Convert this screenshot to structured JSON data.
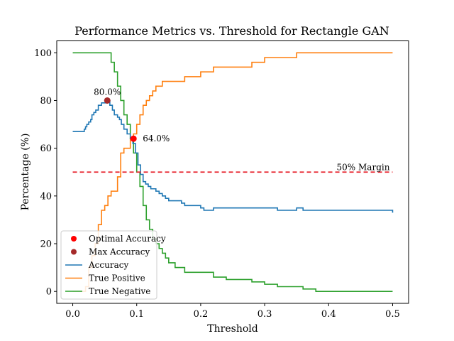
{
  "chart_data": {
    "type": "line",
    "title": "Performance Metrics vs. Threshold for Rectangle GAN",
    "xlabel": "Threshold",
    "ylabel": "Percentage (%)",
    "xlim": [
      -0.025,
      0.525
    ],
    "ylim": [
      -5,
      105
    ],
    "xticks": [
      0.0,
      0.1,
      0.2,
      0.3,
      0.4,
      0.5
    ],
    "xtick_labels": [
      "0.0",
      "0.1",
      "0.2",
      "0.3",
      "0.4",
      "0.5"
    ],
    "yticks": [
      0,
      20,
      40,
      60,
      80,
      100
    ],
    "ytick_labels": [
      "0",
      "20",
      "40",
      "60",
      "80",
      "100"
    ],
    "grid": false,
    "legend_position": "lower-left",
    "colors": {
      "accuracy": "#1f77b4",
      "true_positive": "#ff7f0e",
      "true_negative": "#2ca02c",
      "margin": "#e8202a",
      "optimal_point": "#ff0000",
      "max_point": "#a52a2a"
    },
    "series": [
      {
        "name": "Accuracy",
        "key": "accuracy",
        "x": [
          0.0,
          0.016,
          0.018,
          0.02,
          0.022,
          0.025,
          0.028,
          0.03,
          0.033,
          0.036,
          0.04,
          0.045,
          0.05,
          0.053,
          0.058,
          0.062,
          0.065,
          0.07,
          0.073,
          0.076,
          0.08,
          0.085,
          0.09,
          0.094,
          0.098,
          0.102,
          0.106,
          0.11,
          0.114,
          0.118,
          0.122,
          0.126,
          0.13,
          0.135,
          0.14,
          0.145,
          0.15,
          0.16,
          0.17,
          0.175,
          0.2,
          0.205,
          0.21,
          0.22,
          0.23,
          0.24,
          0.25,
          0.26,
          0.28,
          0.3,
          0.32,
          0.34,
          0.35,
          0.36,
          0.37,
          0.5
        ],
        "values": [
          67,
          67,
          68,
          69,
          70,
          71,
          72,
          74,
          75,
          76,
          78,
          79,
          79,
          80,
          78,
          76,
          74,
          73,
          72,
          70,
          68,
          66,
          64,
          62,
          58,
          53,
          49,
          46,
          45,
          44,
          43,
          43,
          42,
          41,
          40,
          39,
          38,
          38,
          37,
          36,
          35,
          34,
          34,
          35,
          35,
          35,
          35,
          35,
          35,
          35,
          34,
          34,
          35,
          34,
          34,
          33
        ]
      },
      {
        "name": "True Positive",
        "key": "true_positive",
        "x": [
          0.0,
          0.015,
          0.02,
          0.025,
          0.03,
          0.035,
          0.04,
          0.045,
          0.05,
          0.055,
          0.06,
          0.07,
          0.075,
          0.08,
          0.09,
          0.095,
          0.1,
          0.105,
          0.11,
          0.115,
          0.12,
          0.125,
          0.13,
          0.135,
          0.14,
          0.145,
          0.15,
          0.16,
          0.175,
          0.2,
          0.22,
          0.23,
          0.25,
          0.28,
          0.3,
          0.32,
          0.35,
          0.5
        ],
        "values": [
          0,
          0,
          2,
          10,
          15,
          20,
          28,
          34,
          36,
          40,
          42,
          48,
          58,
          60,
          64,
          66,
          70,
          74,
          78,
          80,
          82,
          84,
          86,
          86,
          88,
          88,
          88,
          88,
          90,
          92,
          94,
          94,
          94,
          96,
          98,
          98,
          100,
          100
        ]
      },
      {
        "name": "True Negative",
        "key": "true_negative",
        "x": [
          0.0,
          0.055,
          0.06,
          0.065,
          0.07,
          0.075,
          0.08,
          0.085,
          0.09,
          0.095,
          0.1,
          0.105,
          0.11,
          0.115,
          0.12,
          0.125,
          0.13,
          0.135,
          0.14,
          0.145,
          0.15,
          0.16,
          0.175,
          0.2,
          0.22,
          0.24,
          0.26,
          0.28,
          0.3,
          0.32,
          0.36,
          0.38,
          0.5
        ],
        "values": [
          100,
          100,
          96,
          92,
          86,
          80,
          74,
          70,
          64,
          58,
          50,
          44,
          36,
          30,
          26,
          22,
          20,
          18,
          16,
          14,
          12,
          10,
          8,
          8,
          6,
          5,
          5,
          4,
          3,
          2,
          1,
          0,
          0
        ]
      }
    ],
    "reference_line": {
      "name": "50% Margin",
      "y": 50,
      "x_range": [
        0.0,
        0.5
      ]
    },
    "points": [
      {
        "name": "Optimal Accuracy",
        "key": "optimal_point",
        "x": 0.095,
        "y": 64,
        "label": "64.0%"
      },
      {
        "name": "Max Accuracy",
        "key": "max_point",
        "x": 0.054,
        "y": 80,
        "label": "80.0%"
      }
    ],
    "legend": [
      {
        "label": "Optimal Accuracy",
        "kind": "marker",
        "key": "optimal_point"
      },
      {
        "label": "Max Accuracy",
        "kind": "marker",
        "key": "max_point"
      },
      {
        "label": "Accuracy",
        "kind": "line",
        "key": "accuracy"
      },
      {
        "label": "True Positive",
        "kind": "line",
        "key": "true_positive"
      },
      {
        "label": "True Negative",
        "kind": "line",
        "key": "true_negative"
      }
    ]
  }
}
